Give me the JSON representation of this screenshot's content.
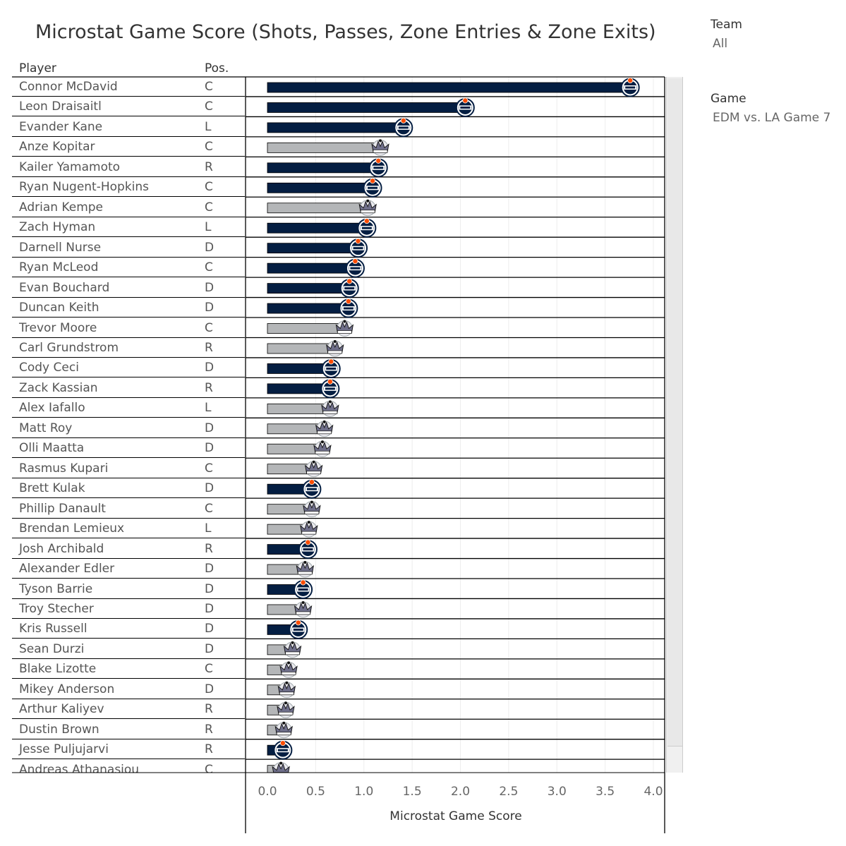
{
  "title": "Microstat Game Score (Shots, Passes, Zone Entries & Zone Exits)",
  "columns": {
    "player": "Player",
    "pos": "Pos."
  },
  "filters": [
    {
      "label": "Team",
      "value": "All"
    },
    {
      "label": "Game",
      "value": "EDM vs. LA Game 7"
    }
  ],
  "colors": {
    "EDM": "#041e42",
    "LA": "#b4b6b8",
    "grid": "#eeeeee"
  },
  "icons": {
    "EDM": "oilers-logo-icon",
    "LA": "kings-logo-icon"
  },
  "chart_data": {
    "type": "bar",
    "orientation": "horizontal",
    "xlabel": "Microstat Game Score",
    "xlim": [
      0,
      4
    ],
    "xticks": [
      "0.0",
      "0.5",
      "1.0",
      "1.5",
      "2.0",
      "2.5",
      "3.0",
      "3.5",
      "4.0"
    ],
    "grid": true,
    "players": [
      {
        "name": "Connor McDavid",
        "pos": "C",
        "team": "EDM",
        "value": 3.76
      },
      {
        "name": "Leon Draisaitl",
        "pos": "C",
        "team": "EDM",
        "value": 2.05
      },
      {
        "name": "Evander Kane",
        "pos": "L",
        "team": "EDM",
        "value": 1.41
      },
      {
        "name": "Anze Kopitar",
        "pos": "C",
        "team": "LA",
        "value": 1.17
      },
      {
        "name": "Kailer Yamamoto",
        "pos": "R",
        "team": "EDM",
        "value": 1.15
      },
      {
        "name": "Ryan Nugent-Hopkins",
        "pos": "C",
        "team": "EDM",
        "value": 1.09
      },
      {
        "name": "Adrian Kempe",
        "pos": "C",
        "team": "LA",
        "value": 1.04
      },
      {
        "name": "Zach Hyman",
        "pos": "L",
        "team": "EDM",
        "value": 1.03
      },
      {
        "name": "Darnell Nurse",
        "pos": "D",
        "team": "EDM",
        "value": 0.94
      },
      {
        "name": "Ryan McLeod",
        "pos": "C",
        "team": "EDM",
        "value": 0.91
      },
      {
        "name": "Evan Bouchard",
        "pos": "D",
        "team": "EDM",
        "value": 0.85
      },
      {
        "name": "Duncan Keith",
        "pos": "D",
        "team": "EDM",
        "value": 0.84
      },
      {
        "name": "Trevor Moore",
        "pos": "C",
        "team": "LA",
        "value": 0.8
      },
      {
        "name": "Carl Grundstrom",
        "pos": "R",
        "team": "LA",
        "value": 0.7
      },
      {
        "name": "Cody Ceci",
        "pos": "D",
        "team": "EDM",
        "value": 0.66
      },
      {
        "name": "Zack Kassian",
        "pos": "R",
        "team": "EDM",
        "value": 0.65
      },
      {
        "name": "Alex Iafallo",
        "pos": "L",
        "team": "LA",
        "value": 0.65
      },
      {
        "name": "Matt Roy",
        "pos": "D",
        "team": "LA",
        "value": 0.59
      },
      {
        "name": "Olli Maatta",
        "pos": "D",
        "team": "LA",
        "value": 0.57
      },
      {
        "name": "Rasmus Kupari",
        "pos": "C",
        "team": "LA",
        "value": 0.48
      },
      {
        "name": "Brett Kulak",
        "pos": "D",
        "team": "EDM",
        "value": 0.46
      },
      {
        "name": "Phillip Danault",
        "pos": "C",
        "team": "LA",
        "value": 0.46
      },
      {
        "name": "Brendan Lemieux",
        "pos": "L",
        "team": "LA",
        "value": 0.43
      },
      {
        "name": "Josh Archibald",
        "pos": "R",
        "team": "EDM",
        "value": 0.42
      },
      {
        "name": "Alexander Edler",
        "pos": "D",
        "team": "LA",
        "value": 0.39
      },
      {
        "name": "Tyson Barrie",
        "pos": "D",
        "team": "EDM",
        "value": 0.37
      },
      {
        "name": "Troy Stecher",
        "pos": "D",
        "team": "LA",
        "value": 0.37
      },
      {
        "name": "Kris Russell",
        "pos": "D",
        "team": "EDM",
        "value": 0.32
      },
      {
        "name": "Sean Durzi",
        "pos": "D",
        "team": "LA",
        "value": 0.26
      },
      {
        "name": "Blake Lizotte",
        "pos": "C",
        "team": "LA",
        "value": 0.22
      },
      {
        "name": "Mikey Anderson",
        "pos": "D",
        "team": "LA",
        "value": 0.2
      },
      {
        "name": "Arthur Kaliyev",
        "pos": "R",
        "team": "LA",
        "value": 0.19
      },
      {
        "name": "Dustin Brown",
        "pos": "R",
        "team": "LA",
        "value": 0.17
      },
      {
        "name": "Jesse Puljujarvi",
        "pos": "R",
        "team": "EDM",
        "value": 0.16
      },
      {
        "name": "Andreas Athanasiou",
        "pos": "C",
        "team": "LA",
        "value": 0.14
      }
    ]
  }
}
